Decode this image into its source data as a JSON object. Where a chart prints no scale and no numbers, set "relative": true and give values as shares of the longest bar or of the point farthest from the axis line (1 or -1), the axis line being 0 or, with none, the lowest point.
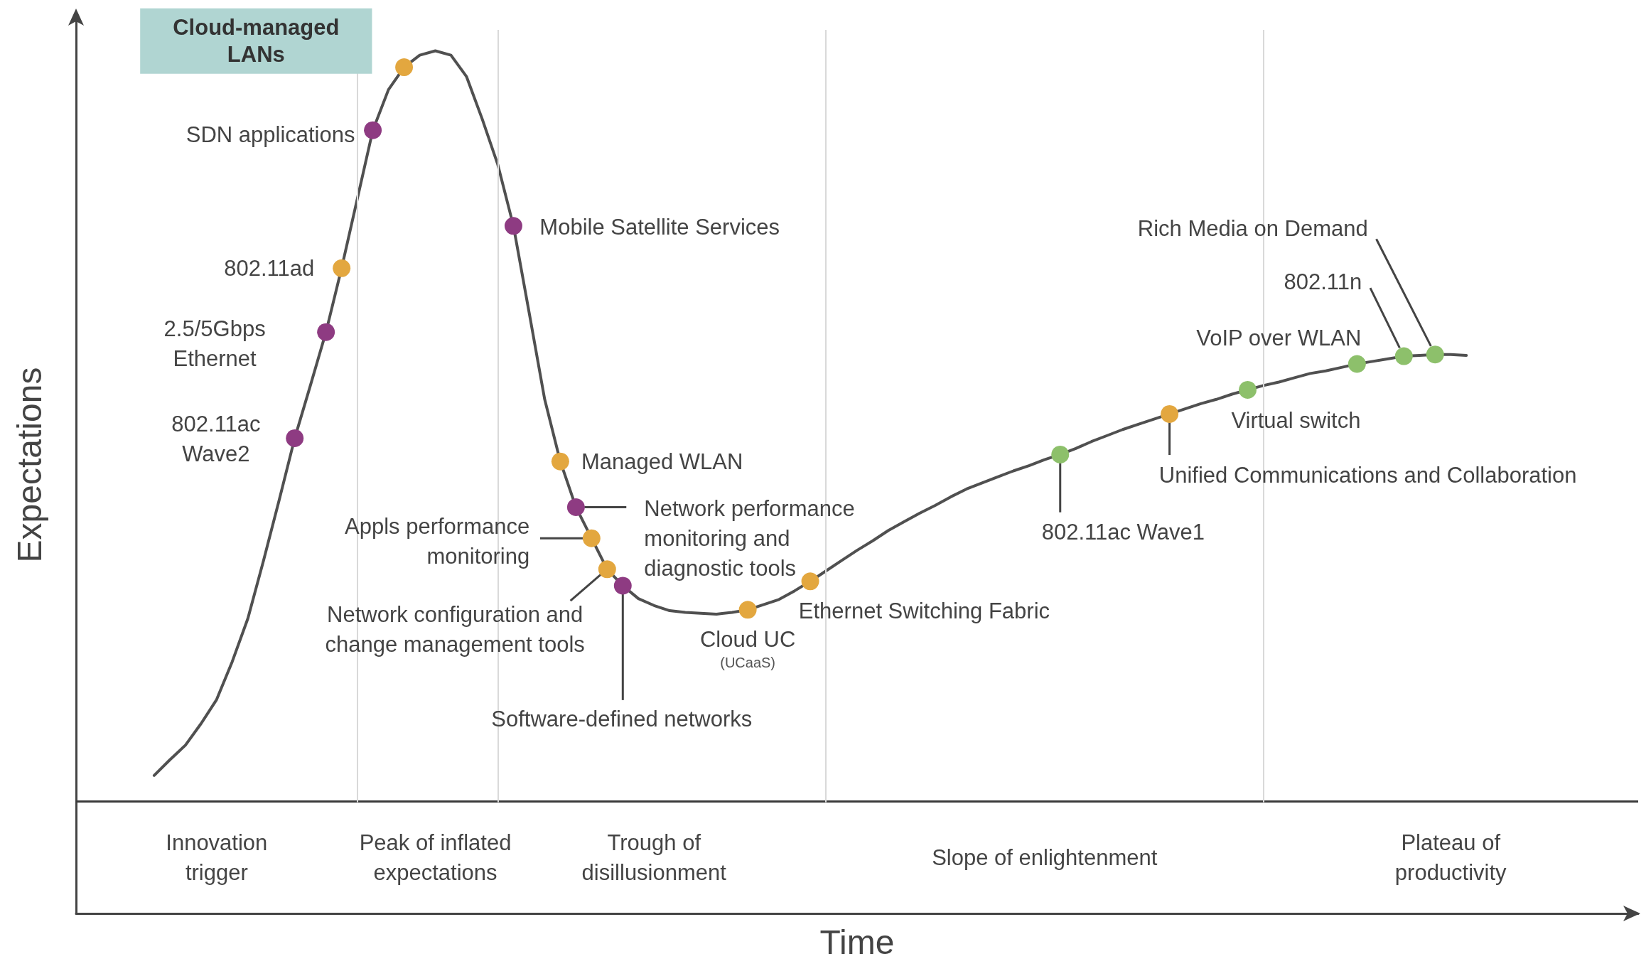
{
  "chart_data": {
    "type": "line",
    "relative": true,
    "xlabel": "Time",
    "ylabel": "Expectations",
    "grid": "x",
    "categories": [
      null,
      null,
      null,
      null,
      null,
      null,
      null,
      null,
      null,
      null,
      null,
      null,
      null,
      null,
      null,
      null,
      null,
      null,
      null,
      null,
      null,
      null,
      null,
      null,
      null,
      null,
      null,
      null,
      null,
      null,
      null,
      null,
      null,
      null,
      null,
      null,
      null,
      null,
      null,
      null,
      null,
      null,
      null,
      null,
      null,
      null,
      null,
      null,
      null,
      null,
      null,
      null,
      null,
      null,
      null,
      null,
      null,
      null,
      null,
      null,
      null,
      null,
      null,
      null,
      null,
      null,
      null,
      null,
      null,
      null,
      null,
      null,
      null,
      null,
      null,
      null,
      null,
      null,
      null,
      null,
      null,
      null,
      null,
      null,
      null,
      null,
      null,
      null,
      null,
      null,
      null,
      null,
      null,
      null,
      null,
      null,
      null,
      null,
      null,
      null,
      null
    ],
    "series": [
      {
        "color": "#505050",
        "values": [
          null,
          null,
          null,
          null,
          null,
          0.16,
          0.178,
          0.195,
          0.22,
          0.248,
          0.292,
          0.342,
          0.409,
          0.479,
          0.551,
          0.612,
          0.674,
          0.748,
          0.828,
          0.908,
          0.955,
          0.981,
          0.995,
          1,
          0.995,
          0.97,
          0.921,
          0.868,
          0.797,
          0.697,
          0.596,
          0.524,
          0.471,
          0.435,
          0.399,
          0.38,
          0.365,
          0.357,
          0.351,
          0.349,
          0.348,
          0.347,
          0.349,
          0.352,
          0.358,
          0.364,
          0.374,
          0.385,
          0.397,
          0.409,
          0.421,
          0.432,
          0.444,
          0.454,
          0.464,
          0.473,
          0.483,
          0.492,
          0.499,
          0.506,
          0.513,
          0.519,
          0.526,
          0.532,
          0.539,
          0.547,
          0.554,
          0.561,
          0.567,
          0.573,
          0.579,
          0.585,
          0.591,
          0.596,
          0.602,
          0.607,
          0.612,
          0.616,
          0.621,
          0.626,
          0.629,
          0.633,
          0.637,
          0.64,
          0.643,
          0.646,
          0.647,
          0.648,
          0.648,
          0.647,
          null,
          null,
          null,
          null,
          null,
          null,
          null,
          null,
          null,
          null,
          null
        ],
        "colors": [
          null,
          null,
          null,
          null,
          null,
          null,
          null,
          null,
          null,
          null,
          null,
          null,
          null,
          null,
          "#8e3b82",
          null,
          "#8e3b82",
          "#e3a73f",
          null,
          "#8e3b82",
          null,
          "#e3a73f",
          null,
          null,
          null,
          null,
          null,
          null,
          "#8e3b82",
          null,
          null,
          "#e3a73f",
          "#8e3b82",
          "#e3a73f",
          "#e3a73f",
          "#8e3b82",
          null,
          null,
          null,
          null,
          null,
          null,
          null,
          "#e3a73f",
          null,
          null,
          null,
          "#e3a73f",
          null,
          null,
          null,
          null,
          null,
          null,
          null,
          null,
          null,
          null,
          null,
          null,
          null,
          null,
          null,
          "#8dc06b",
          null,
          null,
          null,
          null,
          null,
          null,
          "#e3a73f",
          null,
          null,
          null,
          null,
          "#8dc06b",
          null,
          null,
          null,
          null,
          null,
          null,
          "#8dc06b",
          null,
          null,
          "#8dc06b",
          null,
          "#8dc06b",
          null,
          null,
          null,
          null,
          null,
          null,
          null,
          null,
          null,
          null,
          null,
          null,
          null
        ]
      }
    ],
    "ref_lines": [
      {
        "axis": "y",
        "value": 0.129,
        "color": "#3a3a3a"
      }
    ],
    "annotations": [
      "802.11ac\nWave2",
      "2.5/5Gbps\nEthernet",
      "802.11ad",
      "SDN applications",
      "Cloud-managed\nLANs",
      "Mobile Satellite Services",
      "Managed WLAN",
      "Network performance\nmonitoring and\ndiagnostic tools",
      "Appls performance\nmonitoring",
      "Network configuration and\nchange management tools",
      "Software-defined networks",
      "Cloud UC\n(UCaaS)",
      "Ethernet Switching Fabric",
      "802.11ac Wave1",
      "Unified Communications and Collaboration",
      "Virtual switch",
      "VoIP over WLAN",
      "802.11n",
      "Rich Media on Demand",
      "Innovation\ntrigger",
      "Peak of inflated\nexpectations",
      "Trough of\ndisillusionment",
      "Slope of enlightenment",
      "Plateau of\nproductivity"
    ]
  }
}
